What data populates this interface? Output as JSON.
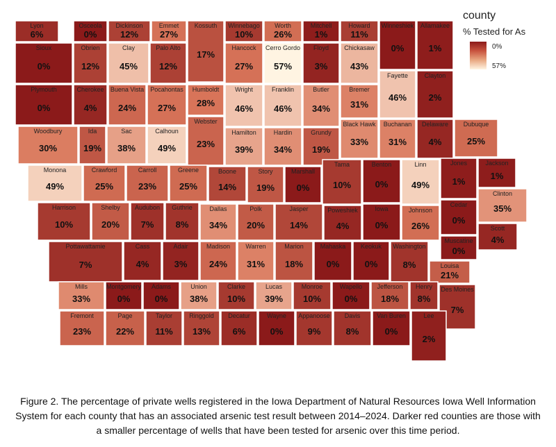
{
  "legend": {
    "title": "county",
    "subtitle": "% Tested for As",
    "min_label": "0%",
    "max_label": "57%"
  },
  "caption": "Figure 2. The percentage of private wells registered in the Iowa Department of Natural Resources Iowa Well Information System for each county that has an associated arsenic test result between 2014–2024. Darker red counties are those with a smaller percentage of wells that have been tested for arsenic over this time period.",
  "colors": {
    "min": "#8b1a1a",
    "mid": "#d9765a",
    "max": "#fff4e2",
    "border": "#ffffff"
  },
  "counties": [
    {
      "name": "Lyon",
      "pct": "6%",
      "value": 6
    },
    {
      "name": "Osceola",
      "pct": "0%",
      "value": 0
    },
    {
      "name": "Dickinson",
      "pct": "12%",
      "value": 12
    },
    {
      "name": "Emmet",
      "pct": "27%",
      "value": 27
    },
    {
      "name": "Kossuth",
      "pct": "17%",
      "value": 17
    },
    {
      "name": "Winnebago",
      "pct": "10%",
      "value": 10
    },
    {
      "name": "Worth",
      "pct": "26%",
      "value": 26
    },
    {
      "name": "Mitchell",
      "pct": "1%",
      "value": 1
    },
    {
      "name": "Howard",
      "pct": "11%",
      "value": 11
    },
    {
      "name": "Winneshiek",
      "pct": "0%",
      "value": 0
    },
    {
      "name": "Allamakee",
      "pct": "1%",
      "value": 1
    },
    {
      "name": "Sioux",
      "pct": "0%",
      "value": 0
    },
    {
      "name": "Obrien",
      "pct": "12%",
      "value": 12
    },
    {
      "name": "Clay",
      "pct": "45%",
      "value": 45
    },
    {
      "name": "Palo Alto",
      "pct": "12%",
      "value": 12
    },
    {
      "name": "Hancock",
      "pct": "27%",
      "value": 27
    },
    {
      "name": "Cerro Gordo",
      "pct": "57%",
      "value": 57
    },
    {
      "name": "Floyd",
      "pct": "3%",
      "value": 3
    },
    {
      "name": "Chickasaw",
      "pct": "43%",
      "value": 43
    },
    {
      "name": "Fayette",
      "pct": "46%",
      "value": 46
    },
    {
      "name": "Clayton",
      "pct": "2%",
      "value": 2
    },
    {
      "name": "Plymouth",
      "pct": "0%",
      "value": 0
    },
    {
      "name": "Cherokee",
      "pct": "4%",
      "value": 4
    },
    {
      "name": "Buena Vista",
      "pct": "24%",
      "value": 24
    },
    {
      "name": "Pocahontas",
      "pct": "27%",
      "value": 27
    },
    {
      "name": "Humboldt",
      "pct": "28%",
      "value": 28
    },
    {
      "name": "Wright",
      "pct": "46%",
      "value": 46
    },
    {
      "name": "Franklin",
      "pct": "46%",
      "value": 46
    },
    {
      "name": "Butler",
      "pct": "34%",
      "value": 34
    },
    {
      "name": "Bremer",
      "pct": "31%",
      "value": 31
    },
    {
      "name": "Woodbury",
      "pct": "30%",
      "value": 30
    },
    {
      "name": "Ida",
      "pct": "19%",
      "value": 19
    },
    {
      "name": "Sac",
      "pct": "38%",
      "value": 38
    },
    {
      "name": "Calhoun",
      "pct": "49%",
      "value": 49
    },
    {
      "name": "Webster",
      "pct": "23%",
      "value": 23
    },
    {
      "name": "Hamilton",
      "pct": "39%",
      "value": 39
    },
    {
      "name": "Hardin",
      "pct": "34%",
      "value": 34
    },
    {
      "name": "Grundy",
      "pct": "19%",
      "value": 19
    },
    {
      "name": "Black Hawk",
      "pct": "33%",
      "value": 33
    },
    {
      "name": "Buchanan",
      "pct": "31%",
      "value": 31
    },
    {
      "name": "Delaware",
      "pct": "4%",
      "value": 4
    },
    {
      "name": "Dubuque",
      "pct": "25%",
      "value": 25
    },
    {
      "name": "Monona",
      "pct": "49%",
      "value": 49
    },
    {
      "name": "Crawford",
      "pct": "25%",
      "value": 25
    },
    {
      "name": "Carroll",
      "pct": "23%",
      "value": 23
    },
    {
      "name": "Greene",
      "pct": "25%",
      "value": 25
    },
    {
      "name": "Boone",
      "pct": "14%",
      "value": 14
    },
    {
      "name": "Story",
      "pct": "19%",
      "value": 19
    },
    {
      "name": "Marshall",
      "pct": "0%",
      "value": 0
    },
    {
      "name": "Tama",
      "pct": "10%",
      "value": 10
    },
    {
      "name": "Benton",
      "pct": "0%",
      "value": 0
    },
    {
      "name": "Linn",
      "pct": "49%",
      "value": 49
    },
    {
      "name": "Jones",
      "pct": "1%",
      "value": 1
    },
    {
      "name": "Jackson",
      "pct": "1%",
      "value": 1
    },
    {
      "name": "Clinton",
      "pct": "35%",
      "value": 35
    },
    {
      "name": "Harrison",
      "pct": "10%",
      "value": 10
    },
    {
      "name": "Shelby",
      "pct": "20%",
      "value": 20
    },
    {
      "name": "Audubon",
      "pct": "7%",
      "value": 7
    },
    {
      "name": "Guthrie",
      "pct": "8%",
      "value": 8
    },
    {
      "name": "Dallas",
      "pct": "34%",
      "value": 34
    },
    {
      "name": "Polk",
      "pct": "20%",
      "value": 20
    },
    {
      "name": "Jasper",
      "pct": "14%",
      "value": 14
    },
    {
      "name": "Poweshiek",
      "pct": "4%",
      "value": 4
    },
    {
      "name": "Iowa",
      "pct": "0%",
      "value": 0
    },
    {
      "name": "Johnson",
      "pct": "26%",
      "value": 26
    },
    {
      "name": "Cedar",
      "pct": "0%",
      "value": 0
    },
    {
      "name": "Scott",
      "pct": "4%",
      "value": 4
    },
    {
      "name": "Muscatine",
      "pct": "0%",
      "value": 0
    },
    {
      "name": "Pottawattamie",
      "pct": "7%",
      "value": 7
    },
    {
      "name": "Cass",
      "pct": "4%",
      "value": 4
    },
    {
      "name": "Adair",
      "pct": "3%",
      "value": 3
    },
    {
      "name": "Madison",
      "pct": "24%",
      "value": 24
    },
    {
      "name": "Warren",
      "pct": "31%",
      "value": 31
    },
    {
      "name": "Marion",
      "pct": "18%",
      "value": 18
    },
    {
      "name": "Mahaska",
      "pct": "0%",
      "value": 0
    },
    {
      "name": "Keokuk",
      "pct": "0%",
      "value": 0
    },
    {
      "name": "Washington",
      "pct": "8%",
      "value": 8
    },
    {
      "name": "Louisa",
      "pct": "21%",
      "value": 21
    },
    {
      "name": "Mills",
      "pct": "33%",
      "value": 33
    },
    {
      "name": "Montgomery",
      "pct": "0%",
      "value": 0
    },
    {
      "name": "Adams",
      "pct": "0%",
      "value": 0
    },
    {
      "name": "Union",
      "pct": "38%",
      "value": 38
    },
    {
      "name": "Clarke",
      "pct": "10%",
      "value": 10
    },
    {
      "name": "Lucas",
      "pct": "39%",
      "value": 39
    },
    {
      "name": "Monroe",
      "pct": "10%",
      "value": 10
    },
    {
      "name": "Wapello",
      "pct": "0%",
      "value": 0
    },
    {
      "name": "Jefferson",
      "pct": "18%",
      "value": 18
    },
    {
      "name": "Henry",
      "pct": "8%",
      "value": 8
    },
    {
      "name": "Des Moines",
      "pct": "7%",
      "value": 7
    },
    {
      "name": "Fremont",
      "pct": "23%",
      "value": 23
    },
    {
      "name": "Page",
      "pct": "22%",
      "value": 22
    },
    {
      "name": "Taylor",
      "pct": "11%",
      "value": 11
    },
    {
      "name": "Ringgold",
      "pct": "13%",
      "value": 13
    },
    {
      "name": "Decatur",
      "pct": "6%",
      "value": 6
    },
    {
      "name": "Wayne",
      "pct": "0%",
      "value": 0
    },
    {
      "name": "Appanoose",
      "pct": "9%",
      "value": 9
    },
    {
      "name": "Davis",
      "pct": "8%",
      "value": 8
    },
    {
      "name": "Van Buren",
      "pct": "0%",
      "value": 0
    },
    {
      "name": "Lee",
      "pct": "2%",
      "value": 2
    }
  ]
}
